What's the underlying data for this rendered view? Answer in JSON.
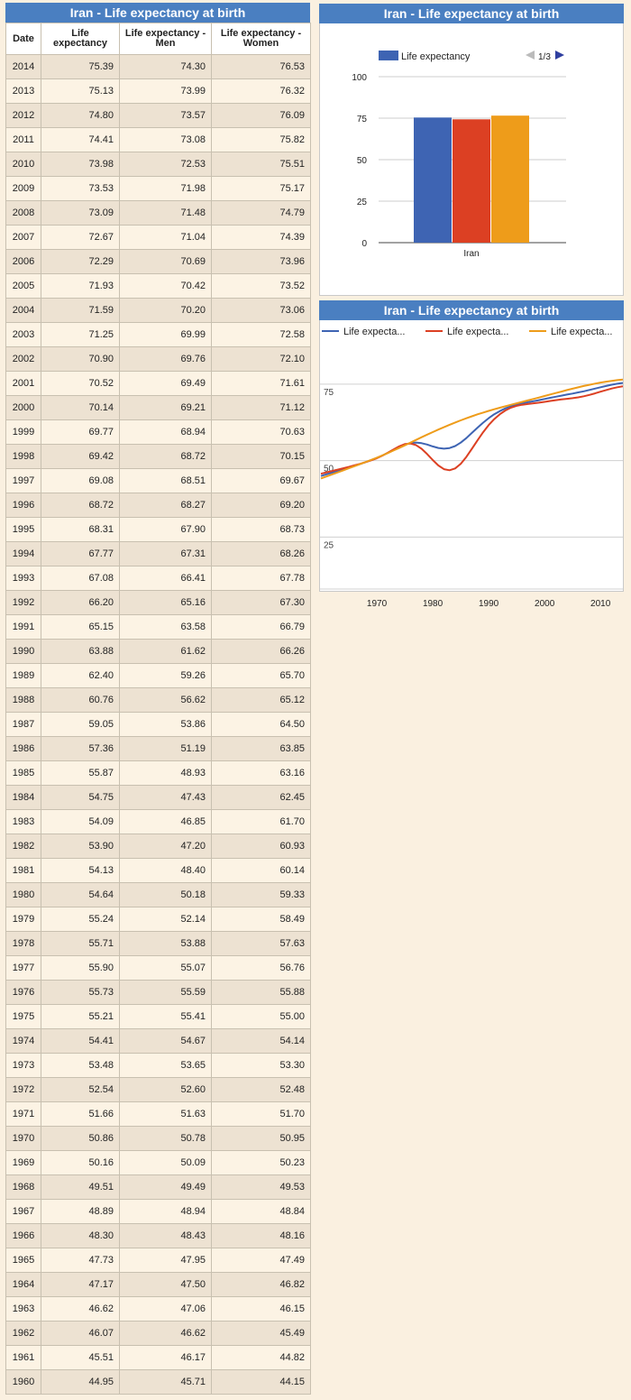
{
  "table": {
    "title": "Iran - Life expectancy at birth",
    "headers": [
      "Date",
      "Life expectancy",
      "Life expectancy - Men",
      "Life expectancy - Women"
    ],
    "rows": [
      [
        "2014",
        "75.39",
        "74.30",
        "76.53"
      ],
      [
        "2013",
        "75.13",
        "73.99",
        "76.32"
      ],
      [
        "2012",
        "74.80",
        "73.57",
        "76.09"
      ],
      [
        "2011",
        "74.41",
        "73.08",
        "75.82"
      ],
      [
        "2010",
        "73.98",
        "72.53",
        "75.51"
      ],
      [
        "2009",
        "73.53",
        "71.98",
        "75.17"
      ],
      [
        "2008",
        "73.09",
        "71.48",
        "74.79"
      ],
      [
        "2007",
        "72.67",
        "71.04",
        "74.39"
      ],
      [
        "2006",
        "72.29",
        "70.69",
        "73.96"
      ],
      [
        "2005",
        "71.93",
        "70.42",
        "73.52"
      ],
      [
        "2004",
        "71.59",
        "70.20",
        "73.06"
      ],
      [
        "2003",
        "71.25",
        "69.99",
        "72.58"
      ],
      [
        "2002",
        "70.90",
        "69.76",
        "72.10"
      ],
      [
        "2001",
        "70.52",
        "69.49",
        "71.61"
      ],
      [
        "2000",
        "70.14",
        "69.21",
        "71.12"
      ],
      [
        "1999",
        "69.77",
        "68.94",
        "70.63"
      ],
      [
        "1998",
        "69.42",
        "68.72",
        "70.15"
      ],
      [
        "1997",
        "69.08",
        "68.51",
        "69.67"
      ],
      [
        "1996",
        "68.72",
        "68.27",
        "69.20"
      ],
      [
        "1995",
        "68.31",
        "67.90",
        "68.73"
      ],
      [
        "1994",
        "67.77",
        "67.31",
        "68.26"
      ],
      [
        "1993",
        "67.08",
        "66.41",
        "67.78"
      ],
      [
        "1992",
        "66.20",
        "65.16",
        "67.30"
      ],
      [
        "1991",
        "65.15",
        "63.58",
        "66.79"
      ],
      [
        "1990",
        "63.88",
        "61.62",
        "66.26"
      ],
      [
        "1989",
        "62.40",
        "59.26",
        "65.70"
      ],
      [
        "1988",
        "60.76",
        "56.62",
        "65.12"
      ],
      [
        "1987",
        "59.05",
        "53.86",
        "64.50"
      ],
      [
        "1986",
        "57.36",
        "51.19",
        "63.85"
      ],
      [
        "1985",
        "55.87",
        "48.93",
        "63.16"
      ],
      [
        "1984",
        "54.75",
        "47.43",
        "62.45"
      ],
      [
        "1983",
        "54.09",
        "46.85",
        "61.70"
      ],
      [
        "1982",
        "53.90",
        "47.20",
        "60.93"
      ],
      [
        "1981",
        "54.13",
        "48.40",
        "60.14"
      ],
      [
        "1980",
        "54.64",
        "50.18",
        "59.33"
      ],
      [
        "1979",
        "55.24",
        "52.14",
        "58.49"
      ],
      [
        "1978",
        "55.71",
        "53.88",
        "57.63"
      ],
      [
        "1977",
        "55.90",
        "55.07",
        "56.76"
      ],
      [
        "1976",
        "55.73",
        "55.59",
        "55.88"
      ],
      [
        "1975",
        "55.21",
        "55.41",
        "55.00"
      ],
      [
        "1974",
        "54.41",
        "54.67",
        "54.14"
      ],
      [
        "1973",
        "53.48",
        "53.65",
        "53.30"
      ],
      [
        "1972",
        "52.54",
        "52.60",
        "52.48"
      ],
      [
        "1971",
        "51.66",
        "51.63",
        "51.70"
      ],
      [
        "1970",
        "50.86",
        "50.78",
        "50.95"
      ],
      [
        "1969",
        "50.16",
        "50.09",
        "50.23"
      ],
      [
        "1968",
        "49.51",
        "49.49",
        "49.53"
      ],
      [
        "1967",
        "48.89",
        "48.94",
        "48.84"
      ],
      [
        "1966",
        "48.30",
        "48.43",
        "48.16"
      ],
      [
        "1965",
        "47.73",
        "47.95",
        "47.49"
      ],
      [
        "1964",
        "47.17",
        "47.50",
        "46.82"
      ],
      [
        "1963",
        "46.62",
        "47.06",
        "46.15"
      ],
      [
        "1962",
        "46.07",
        "46.62",
        "45.49"
      ],
      [
        "1961",
        "45.51",
        "46.17",
        "44.82"
      ],
      [
        "1960",
        "44.95",
        "45.71",
        "44.15"
      ]
    ]
  },
  "colors": {
    "header_bg": "#4a7fc1",
    "series": [
      "#3e64b3",
      "#dc4023",
      "#ee9c1a"
    ],
    "row_odd": "#ede2d2",
    "row_even": "#fcf3e4",
    "page_bg": "#faf0e0"
  },
  "chart_data": [
    {
      "type": "bar",
      "title": "Iran - Life expectancy at birth",
      "categories": [
        "Iran"
      ],
      "series": [
        {
          "name": "Life expectancy",
          "values": [
            75.39
          ]
        },
        {
          "values": [
            74.3
          ]
        },
        {
          "values": [
            76.53
          ]
        }
      ],
      "legend": {
        "label": "Life expectancy",
        "page": "1/3",
        "position": "top"
      },
      "yticks": [
        "0",
        "25",
        "50",
        "75",
        "100"
      ],
      "ylim": [
        0,
        100
      ],
      "grid": true
    },
    {
      "type": "line",
      "title": "Iran - Life expectancy at birth",
      "legend_labels": [
        "Life expecta...",
        "Life expecta...",
        "Life expecta..."
      ],
      "legend_position": "top",
      "xticks": [
        "1970",
        "1980",
        "1990",
        "2000",
        "2010"
      ],
      "yticks": [
        "25",
        "50",
        "75"
      ],
      "xlim": [
        1960,
        2014
      ],
      "ylim": [
        8,
        90
      ],
      "grid": true
    }
  ]
}
